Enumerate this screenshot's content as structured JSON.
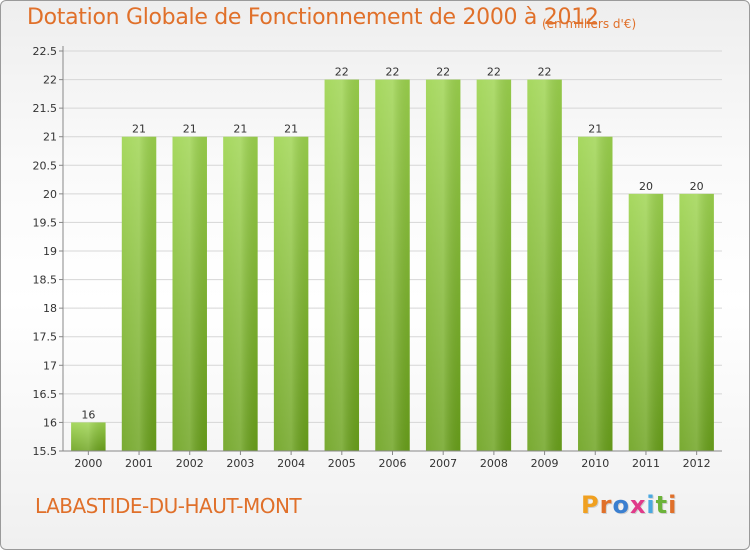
{
  "header": {
    "title": "Dotation Globale de Fonctionnement de 2000 à 2012",
    "unit": "(en milliers d'€)"
  },
  "footer": {
    "commune": "LABASTIDE-DU-HAUT-MONT",
    "brand": "Proxiti",
    "brand_colors": [
      "#f0a020",
      "#e0702a",
      "#3a7fd0",
      "#e03a8a",
      "#4aa8e0",
      "#6cb33a",
      "#e0702a"
    ]
  },
  "colors": {
    "bar_top": "#9dd44e",
    "bar_bottom": "#6aa11b",
    "accent": "#e0702a",
    "grid": "#d6d6d6",
    "axis": "#888888"
  },
  "chart_data": {
    "type": "bar",
    "title": "Dotation Globale de Fonctionnement de 2000 à 2012",
    "subtitle": "(en milliers d'€)",
    "categories": [
      "2000",
      "2001",
      "2002",
      "2003",
      "2004",
      "2005",
      "2006",
      "2007",
      "2008",
      "2009",
      "2010",
      "2011",
      "2012"
    ],
    "values": [
      16,
      21,
      21,
      21,
      21,
      22,
      22,
      22,
      22,
      22,
      21,
      20,
      20
    ],
    "data_labels": [
      "16",
      "21",
      "21",
      "21",
      "21",
      "22",
      "22",
      "22",
      "22",
      "22",
      "21",
      "20",
      "20"
    ],
    "y_ticks": [
      "15.5",
      "16",
      "16.5",
      "17",
      "17.5",
      "18",
      "18.5",
      "19",
      "19.5",
      "20",
      "20.5",
      "21",
      "21.5",
      "22",
      "22.5"
    ],
    "ylim": [
      15.5,
      22.5
    ],
    "grid": true,
    "legend": "none",
    "xlabel": "",
    "ylabel": ""
  }
}
